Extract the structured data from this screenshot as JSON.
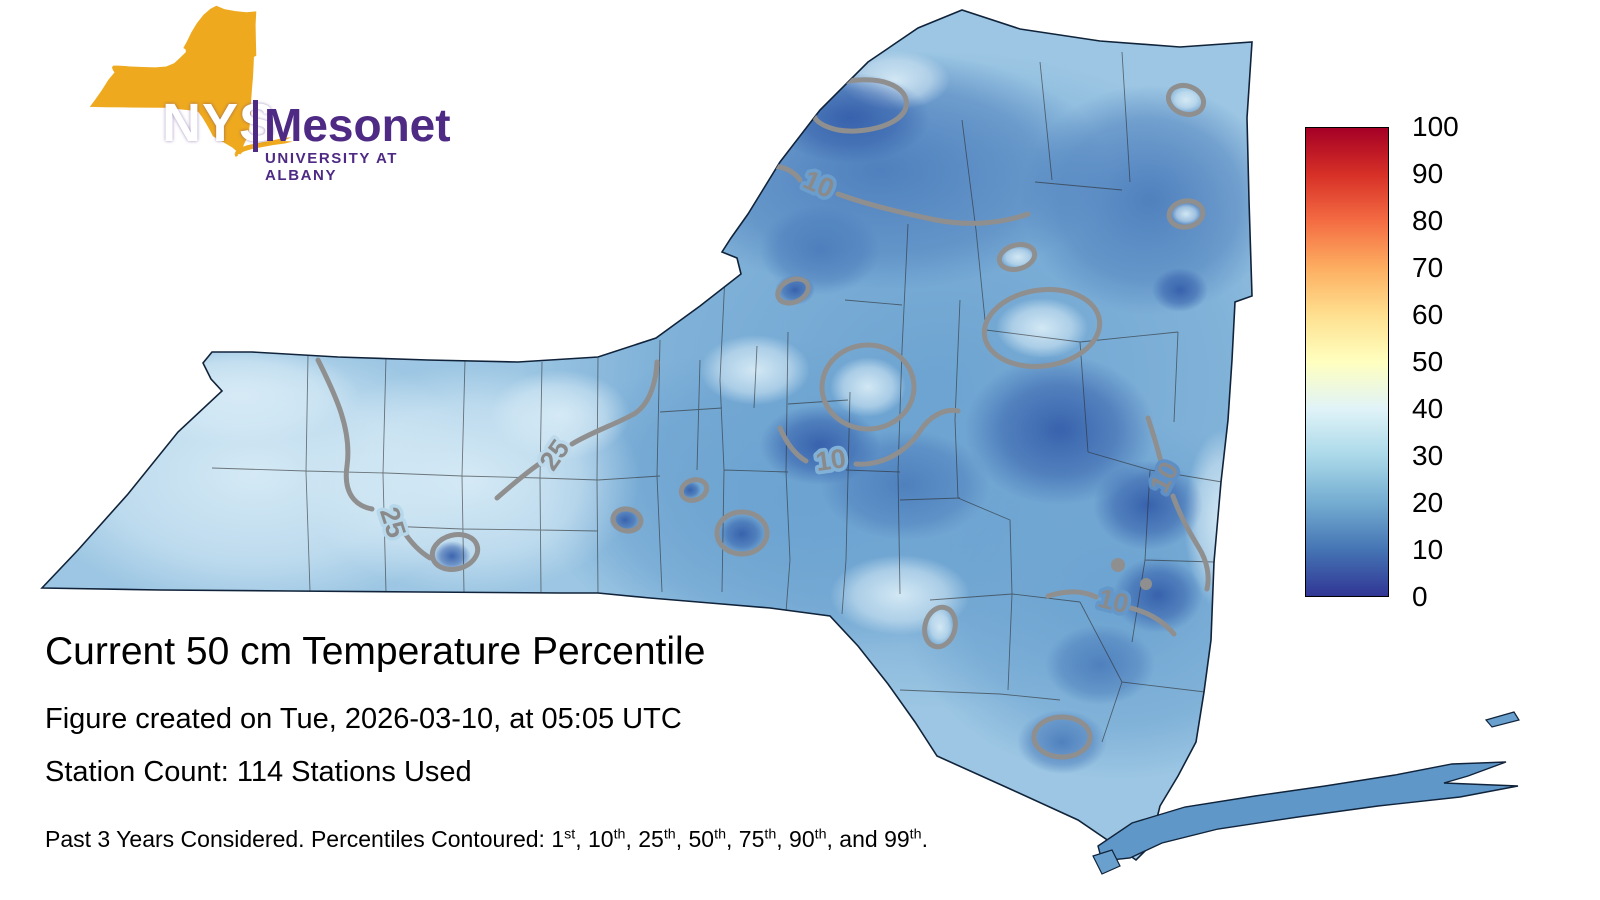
{
  "logo": {
    "nys": "NYS",
    "mesonet": "Mesonet",
    "university": "UNIVERSITY AT ALBANY",
    "orange": "#EEA91F",
    "purple": "#4E2A84"
  },
  "caption": {
    "title": "Current 50 cm Temperature Percentile",
    "created_line": "Figure created on Tue, 2026-03-10, at 05:05 UTC",
    "station_line": "Station Count: 114 Stations Used"
  },
  "footnote": {
    "prefix": "Past 3 Years Considered. Percentiles Contoured: ",
    "percentiles": [
      {
        "value": "1",
        "ordinal": "st",
        "sep": ", "
      },
      {
        "value": "10",
        "ordinal": "th",
        "sep": ", "
      },
      {
        "value": "25",
        "ordinal": "th",
        "sep": ", "
      },
      {
        "value": "50",
        "ordinal": "th",
        "sep": ", "
      },
      {
        "value": "75",
        "ordinal": "th",
        "sep": ", "
      },
      {
        "value": "90",
        "ordinal": "th",
        "sep": ", and "
      },
      {
        "value": "99",
        "ordinal": "th",
        "sep": "."
      }
    ]
  },
  "colorbar": {
    "ticks": [
      "100",
      "90",
      "80",
      "70",
      "60",
      "50",
      "40",
      "30",
      "20",
      "10",
      "0"
    ],
    "colors": [
      "#a50026",
      "#d73027",
      "#f46d43",
      "#fdae61",
      "#fee090",
      "#ffffbf",
      "#e0f3f8",
      "#abd9e9",
      "#74add1",
      "#4575b4",
      "#313695"
    ]
  },
  "map": {
    "contour_labels": [
      "25",
      "25",
      "10",
      "10",
      "10",
      "10"
    ]
  },
  "chart_data": {
    "type": "heatmap",
    "title": "Current 50 cm Temperature Percentile",
    "region": "New York State (county borders shown)",
    "variable": "50 cm soil temperature percentile",
    "colorbar_range": [
      0,
      100
    ],
    "colorbar_ticks": [
      100,
      90,
      80,
      70,
      60,
      50,
      40,
      30,
      20,
      10,
      0
    ],
    "colormap": "RdYlBu reversed-value scale: 100 = dark red, 50 = pale yellow, 0 = dark blue",
    "contour_levels_labeled_on_map": [
      10,
      25
    ],
    "contour_levels_defined": [
      1,
      10,
      25,
      50,
      75,
      90,
      99
    ],
    "value_summary": "Statewide values are in the blue range, roughly 5-40th percentile; western NY mostly 25-40, northern and eastern NY mostly 5-25",
    "station_count": 114,
    "created": "Tue, 2026-03-10, at 05:05 UTC",
    "years_considered": 3,
    "legend_position": "right vertical colorbar"
  }
}
